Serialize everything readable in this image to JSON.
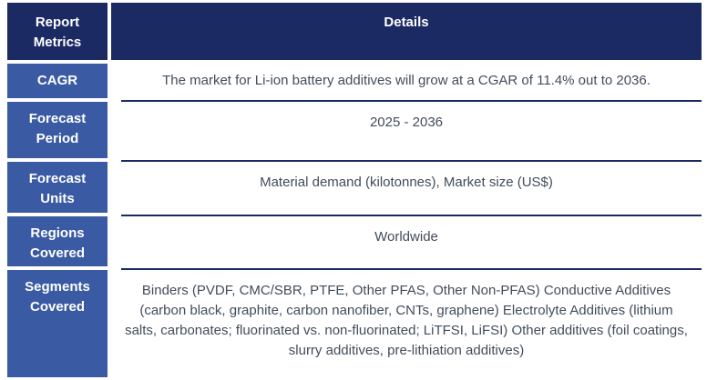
{
  "table": {
    "header": {
      "metric_label": "Report Metrics",
      "details_label": "Details"
    },
    "rows": [
      {
        "metric": "CAGR",
        "detail": "The market for Li-ion battery additives will grow at a CGAR of 11.4% out to 2036."
      },
      {
        "metric": "Forecast Period",
        "detail": "2025 - 2036"
      },
      {
        "metric": "Forecast Units",
        "detail": "Material demand (kilotonnes), Market size (US$)"
      },
      {
        "metric": "Regions Covered",
        "detail": "Worldwide"
      },
      {
        "metric": "Segments Covered",
        "detail": "Binders (PVDF, CMC/SBR, PTFE, Other PFAS, Other Non-PFAS) Conductive Additives (carbon black, graphite, carbon nanofiber, CNTs, graphene) Electrolyte Additives (lithium salts, carbonates; fluorinated vs. non-fluorinated; LiTFSI, LiFSI) Other additives (foil coatings, slurry additives, pre-lithiation additives)"
      }
    ],
    "colors": {
      "header_bg": "#1c2a64",
      "metric_cell_bg": "#3a5ba4",
      "separator_rule": "#1c2a64",
      "detail_text": "#414d5a",
      "header_text": "#ffffff"
    }
  }
}
